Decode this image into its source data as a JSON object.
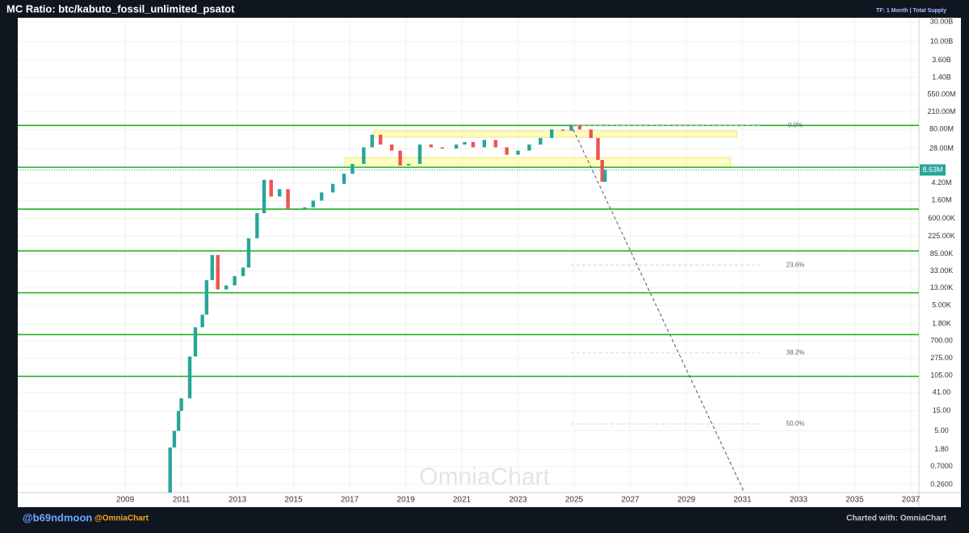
{
  "chart_data": {
    "type": "candlestick",
    "title": "MC Ratio: btc/kabuto_fossil_unlimited_psatot",
    "subtitle": "TF: 1 Month | Total Supply",
    "x": [
      2010.6,
      2010.75,
      2010.9,
      2011.0,
      2011.3,
      2011.5,
      2011.75,
      2011.9,
      2012.1,
      2012.3,
      2012.6,
      2012.9,
      2013.2,
      2013.4,
      2013.7,
      2013.95,
      2014.2,
      2014.5,
      2014.8,
      2015.1,
      2015.4,
      2015.7,
      2016.0,
      2016.4,
      2016.8,
      2017.1,
      2017.5,
      2017.8,
      2018.1,
      2018.5,
      2018.8,
      2019.1,
      2019.5,
      2019.9,
      2020.3,
      2020.8,
      2021.1,
      2021.4,
      2021.8,
      2022.2,
      2022.6,
      2023.0,
      2023.4,
      2023.8,
      2024.2,
      2024.6,
      2024.9,
      2025.2,
      2025.6,
      2025.85,
      2026.0,
      2026.1
    ],
    "values": [
      2,
      5,
      15,
      30,
      300,
      1500,
      3000,
      20000,
      80000,
      12000,
      15000,
      25000,
      40000,
      200000,
      800000,
      5000000,
      2000000,
      3000000,
      1000000,
      1000000,
      1100000,
      1600000,
      2500000,
      4000000,
      7000000,
      12000000,
      30000000,
      60000000,
      35000000,
      25000000,
      11000000,
      12000000,
      35000000,
      30000000,
      28000000,
      35000000,
      40000000,
      30000000,
      45000000,
      30000000,
      20000000,
      25000000,
      35000000,
      50000000,
      80000000,
      75000000,
      100000000,
      80000000,
      50000000,
      15000000,
      4500000,
      8630000
    ],
    "up_color": "#26a69a",
    "down_color": "#ef5350",
    "log_scale": true,
    "grid": true,
    "xlim": [
      2005.17,
      2037.29
    ],
    "ylim": [
      0.167,
      32800000000
    ],
    "xticks": [
      2009,
      2011,
      2013,
      2015,
      2017,
      2019,
      2021,
      2023,
      2025,
      2027,
      2029,
      2031,
      2033,
      2035,
      2037
    ],
    "yticks": [
      {
        "value": 30000000000,
        "label": "30.00B"
      },
      {
        "value": 10000000000,
        "label": "10.00B"
      },
      {
        "value": 3600000000,
        "label": "3.60B"
      },
      {
        "value": 1400000000,
        "label": "1.40B"
      },
      {
        "value": 550000000,
        "label": "550.00M"
      },
      {
        "value": 210000000,
        "label": "210.00M"
      },
      {
        "value": 80000000,
        "label": "80.00M"
      },
      {
        "value": 28000000,
        "label": "28.00M"
      },
      {
        "value": 4200000,
        "label": "4.20M"
      },
      {
        "value": 1600000,
        "label": "1.60M"
      },
      {
        "value": 600000,
        "label": "600.00K"
      },
      {
        "value": 225000,
        "label": "225.00K"
      },
      {
        "value": 85000,
        "label": "85.00K"
      },
      {
        "value": 33000,
        "label": "33.00K"
      },
      {
        "value": 13000,
        "label": "13.00K"
      },
      {
        "value": 5000,
        "label": "5.00K"
      },
      {
        "value": 1800,
        "label": "1.80K"
      },
      {
        "value": 700,
        "label": "700.00"
      },
      {
        "value": 275,
        "label": "275.00"
      },
      {
        "value": 105,
        "label": "105.00"
      },
      {
        "value": 41,
        "label": "41.00"
      },
      {
        "value": 15,
        "label": "15.00"
      },
      {
        "value": 5,
        "label": "5.00"
      },
      {
        "value": 1.8,
        "label": "1.80"
      },
      {
        "value": 0.7,
        "label": "0.7000"
      },
      {
        "value": 0.26,
        "label": "0.2600"
      }
    ],
    "last_price": {
      "value": 8630000,
      "label": "8.63M"
    },
    "level_lines": {
      "color": "#22b020",
      "values": [
        100000000,
        10000000,
        1000000,
        100000,
        10000,
        1000,
        100
      ]
    },
    "fib_levels": [
      {
        "value": 100000000,
        "label": "0.0%"
      },
      {
        "value": 46000,
        "label": "23.6%"
      },
      {
        "value": 365,
        "label": "38.2%"
      },
      {
        "value": 7.3,
        "label": "50.0%"
      }
    ],
    "fib_x": [
      2024.88,
      2031.6
    ],
    "highlight_zones": [
      {
        "x": [
          2017.86,
          2030.8
        ],
        "y": [
          52000000,
          74000000
        ]
      },
      {
        "x": [
          2016.83,
          2030.58
        ],
        "y": [
          10000000,
          17000000
        ]
      }
    ],
    "trend_line": {
      "x": [
        2024.88,
        2031.07
      ],
      "y": [
        106000000,
        0.167
      ]
    },
    "watermark": "OmniaChart",
    "footer": {
      "author": "@b69ndmoon",
      "brand": "@OmniaChart",
      "credit": "Charted with: OmniaChart"
    }
  }
}
